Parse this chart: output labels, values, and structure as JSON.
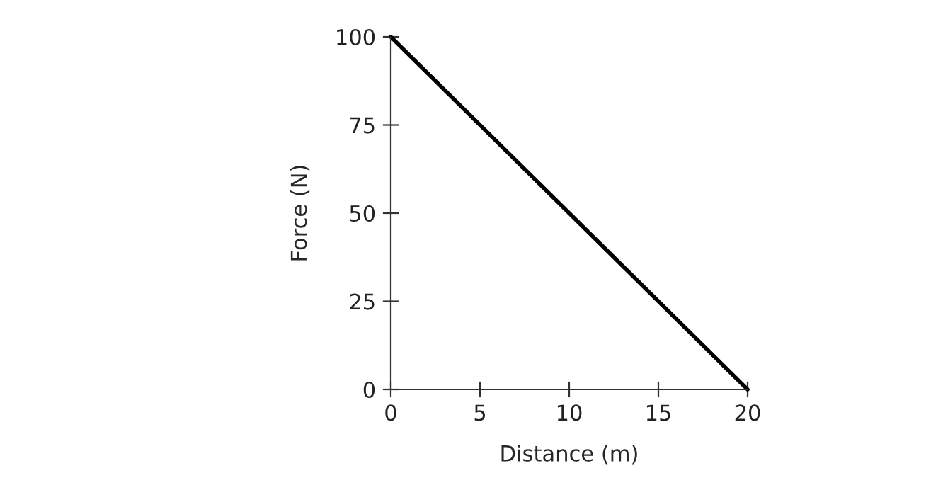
{
  "chart_data": {
    "type": "line",
    "xlabel": "Distance (m)",
    "ylabel": "Force (N)",
    "x": [
      0,
      20
    ],
    "series": [
      {
        "color": "#000000",
        "values": [
          100,
          0
        ]
      }
    ],
    "xlim": [
      0,
      20
    ],
    "ylim": [
      0,
      100
    ],
    "xticks": [
      0,
      5,
      10,
      15,
      20
    ],
    "yticks": [
      0,
      25,
      50,
      75,
      100
    ],
    "grid": false,
    "legend": false,
    "marker": "none",
    "line_style": "solid"
  }
}
